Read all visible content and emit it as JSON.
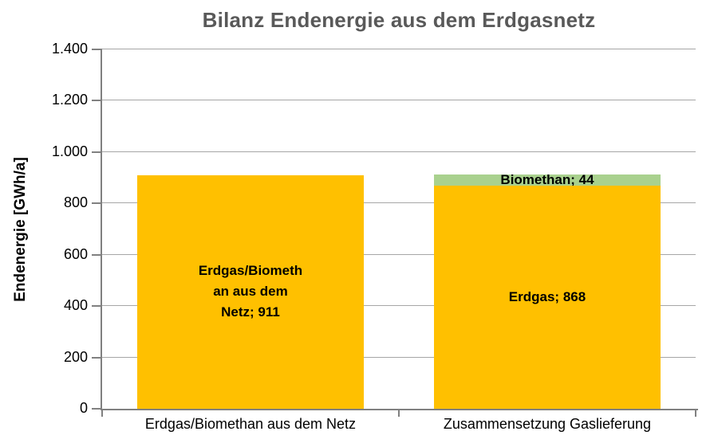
{
  "chart_data": {
    "type": "bar",
    "stacked": true,
    "title": "Bilanz Endenergie aus dem Erdgasnetz",
    "ylabel": "Endenergie [GWh/a]",
    "xlabel": "",
    "ylim": [
      0,
      1400
    ],
    "grid": "horizontal",
    "legend": "none",
    "yticks": [
      {
        "value": 0,
        "label": "0"
      },
      {
        "value": 200,
        "label": "200"
      },
      {
        "value": 400,
        "label": "400"
      },
      {
        "value": 600,
        "label": "600"
      },
      {
        "value": 800,
        "label": "800"
      },
      {
        "value": 1000,
        "label": "1.000"
      },
      {
        "value": 1200,
        "label": "1.200"
      },
      {
        "value": 1400,
        "label": "1.400"
      }
    ],
    "categories": [
      "Erdgas/Biomethan aus dem Netz",
      "Zusammensetzung Gaslieferung"
    ],
    "bars": [
      {
        "category": "Erdgas/Biomethan aus dem Netz",
        "segments": [
          {
            "name": "Erdgas/Biomethan aus dem Netz",
            "value": 911,
            "color": "#FFC000",
            "label": "Erdgas/Biometh\nan aus dem\nNetz; 911"
          }
        ]
      },
      {
        "category": "Zusammensetzung Gaslieferung",
        "segments": [
          {
            "name": "Erdgas",
            "value": 868,
            "color": "#FFC000",
            "label": "Erdgas; 868"
          },
          {
            "name": "Biomethan",
            "value": 44,
            "color": "#A9D18E",
            "label": "Biomethan; 44"
          }
        ]
      }
    ],
    "colors": {
      "erdgas": "#FFC000",
      "biomethan": "#A9D18E",
      "title_text": "#595959",
      "axis": "#808080",
      "gridline": "#A6A6A6",
      "label_text": "#000000"
    }
  }
}
